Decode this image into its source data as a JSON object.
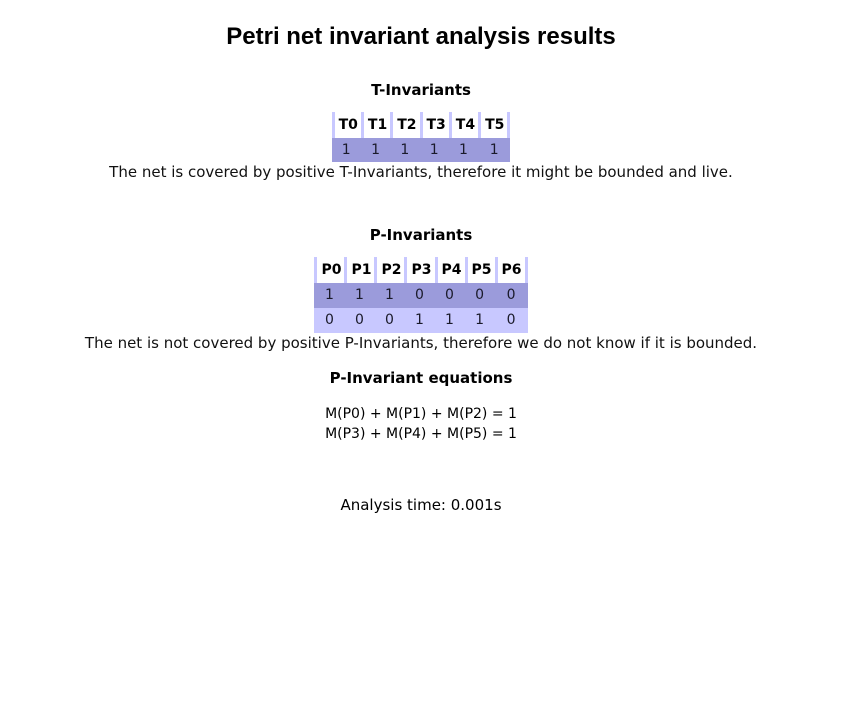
{
  "page": {
    "title": "Petri net invariant analysis results"
  },
  "t_invariants": {
    "heading": "T-Invariants",
    "columns": [
      "T0",
      "T1",
      "T2",
      "T3",
      "T4",
      "T5"
    ],
    "rows": [
      [
        "1",
        "1",
        "1",
        "1",
        "1",
        "1"
      ]
    ],
    "note": "The net is covered by positive T-Invariants, therefore it might be bounded and live."
  },
  "p_invariants": {
    "heading": "P-Invariants",
    "columns": [
      "P0",
      "P1",
      "P2",
      "P3",
      "P4",
      "P5",
      "P6"
    ],
    "rows": [
      [
        "1",
        "1",
        "1",
        "0",
        "0",
        "0",
        "0"
      ],
      [
        "0",
        "0",
        "0",
        "1",
        "1",
        "1",
        "0"
      ]
    ],
    "note": "The net is not covered by positive P-Invariants, therefore we do not know if it is bounded."
  },
  "p_invariant_equations": {
    "heading": "P-Invariant equations",
    "equations": [
      "M(P0) + M(P1) + M(P2) = 1",
      "M(P3) + M(P4) + M(P5) = 1"
    ]
  },
  "analysis": {
    "time_label": "Analysis time: 0.001s"
  },
  "colors": {
    "row_dark": "#9b9bdb",
    "row_light": "#c8c8ff",
    "header_rule": "#c8c8ff"
  }
}
